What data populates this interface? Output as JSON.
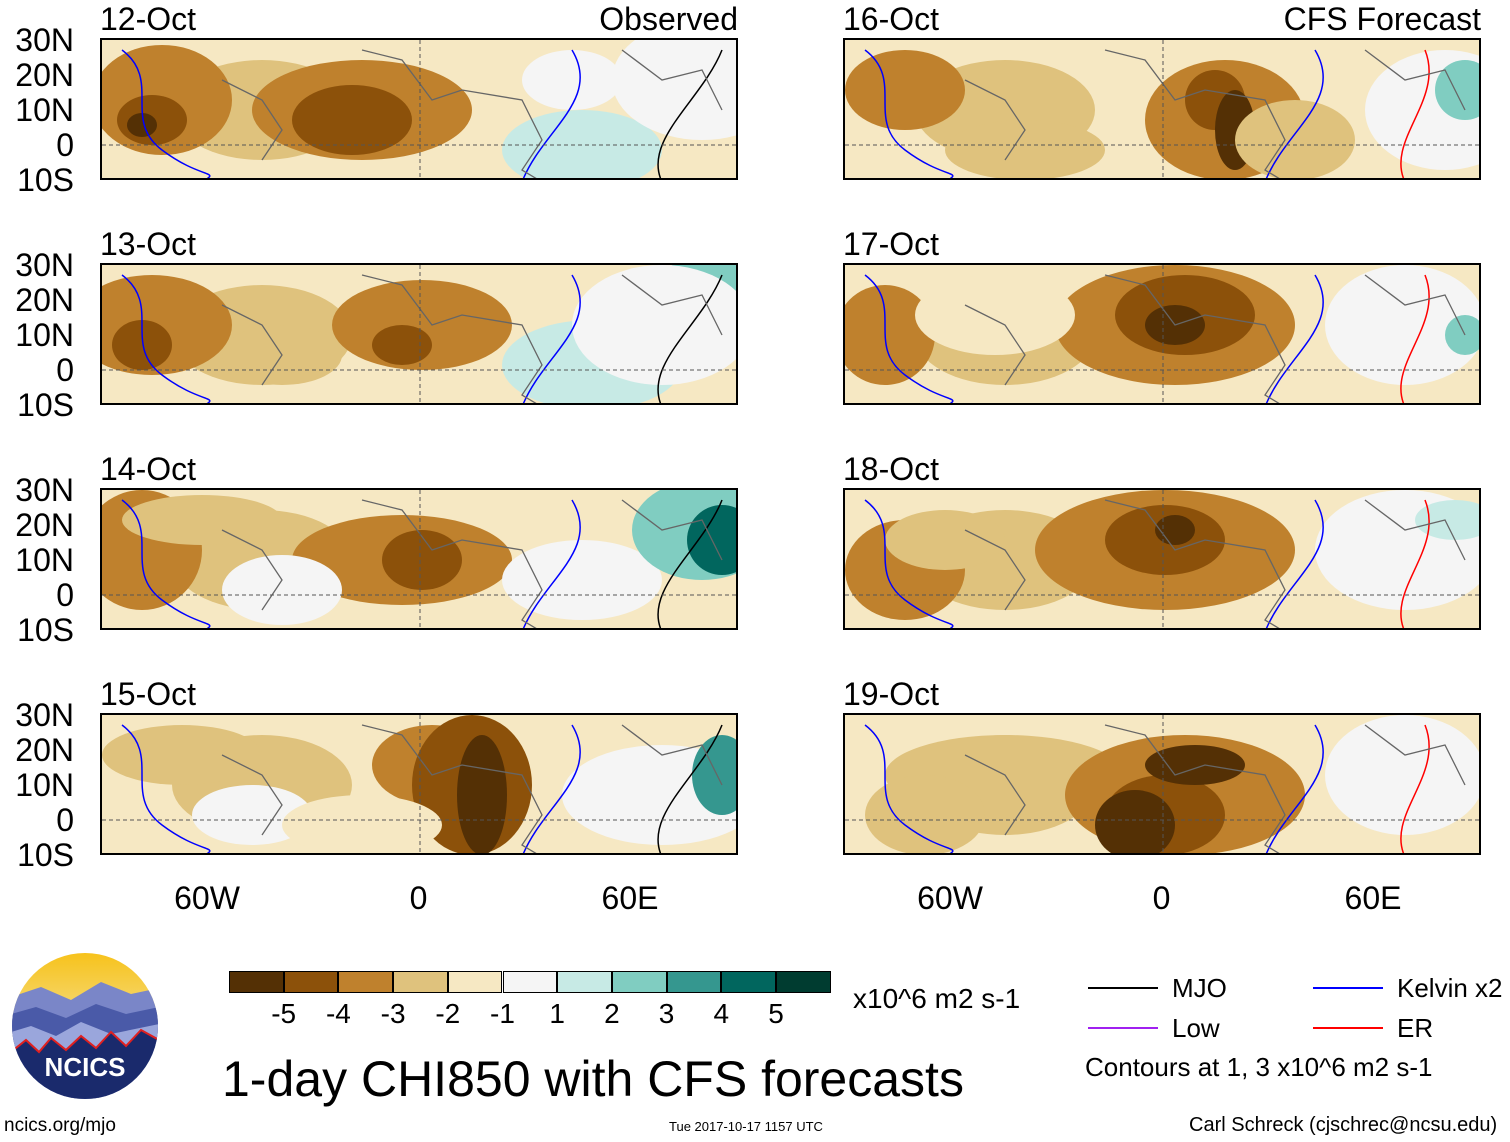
{
  "panels_left": [
    {
      "date": "12-Oct",
      "label": "Observed"
    },
    {
      "date": "13-Oct"
    },
    {
      "date": "14-Oct"
    },
    {
      "date": "15-Oct"
    }
  ],
  "panels_right": [
    {
      "date": "16-Oct",
      "label": "CFS Forecast"
    },
    {
      "date": "17-Oct"
    },
    {
      "date": "18-Oct"
    },
    {
      "date": "19-Oct"
    }
  ],
  "lat_labels": [
    "30N",
    "20N",
    "10N",
    "0",
    "10S"
  ],
  "lon_labels": [
    "60W",
    "0",
    "60E"
  ],
  "colorbar": {
    "colors": [
      "#543005",
      "#8c510a",
      "#bf812d",
      "#dfc27d",
      "#f6e8c3",
      "#f5f5f5",
      "#c7eae5",
      "#80cdc1",
      "#35978f",
      "#01665e",
      "#003c30"
    ],
    "ticks": [
      "-5",
      "-4",
      "-3",
      "-2",
      "-1",
      "1",
      "2",
      "3",
      "4",
      "5"
    ],
    "units": "x10^6 m2 s-1"
  },
  "legend": {
    "items": [
      {
        "label": "MJO",
        "color": "#000000"
      },
      {
        "label": "Kelvin x2",
        "color": "#0000ff"
      },
      {
        "label": "Low",
        "color": "#a020f0"
      },
      {
        "label": "ER",
        "color": "#ff0000"
      }
    ],
    "note": "Contours at 1, 3 x10^6 m2 s-1"
  },
  "title": "1-day CHI850 with CFS forecasts",
  "logo_text": "NCICS",
  "footer": {
    "url": "ncics.org/mjo",
    "timestamp": "Tue 2017-10-17 1157 UTC",
    "credit": "Carl Schreck (cjschrec@ncsu.edu)"
  }
}
